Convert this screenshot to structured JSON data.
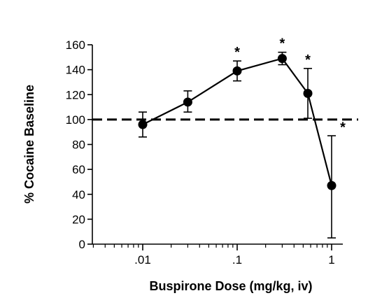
{
  "chart_data": {
    "type": "line",
    "xlabel": "Buspirone Dose (mg/kg, iv)",
    "ylabel": "% Cocaine Baseline",
    "x_scale": "log",
    "xlim": [
      0.003,
      1.2
    ],
    "ylim": [
      0,
      160
    ],
    "x_ticks": [
      {
        "value": 0.01,
        "label": ".01"
      },
      {
        "value": 0.1,
        "label": ".1"
      },
      {
        "value": 1,
        "label": "1"
      }
    ],
    "y_ticks": [
      0,
      20,
      40,
      60,
      80,
      100,
      120,
      140,
      160
    ],
    "grid": false,
    "reference_line": {
      "y": 100,
      "style": "dashed"
    },
    "series": [
      {
        "points": [
          {
            "x": 0.01,
            "y": 96,
            "err_low": 86,
            "err_high": 106,
            "marker": ""
          },
          {
            "x": 0.03,
            "y": 114,
            "err_low": 106,
            "err_high": 123,
            "marker": ""
          },
          {
            "x": 0.1,
            "y": 139,
            "err_low": 131,
            "err_high": 147,
            "marker": "*"
          },
          {
            "x": 0.3,
            "y": 149,
            "err_low": 144,
            "err_high": 154,
            "marker": "*"
          },
          {
            "x": 0.56,
            "y": 121,
            "err_low": 101,
            "err_high": 141,
            "marker": "*"
          },
          {
            "x": 1,
            "y": 47,
            "err_low": 5,
            "err_high": 87,
            "marker": "*"
          }
        ]
      }
    ]
  }
}
